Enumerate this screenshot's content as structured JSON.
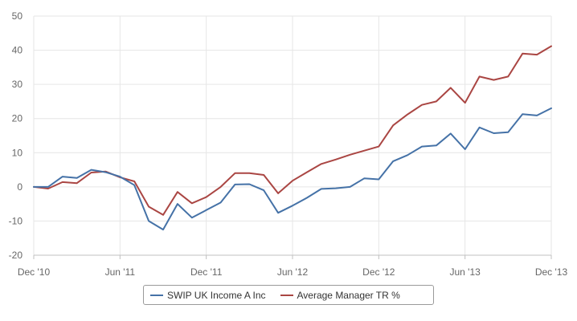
{
  "chart_data": {
    "type": "line",
    "title": "",
    "xlabel": "",
    "ylabel": "",
    "ylim": [
      -20,
      50
    ],
    "y_ticks": [
      "50",
      "40",
      "30",
      "20",
      "10",
      "0",
      "-10",
      "-20"
    ],
    "x_ticks": [
      "Dec '10",
      "Jun '11",
      "Dec '11",
      "Jun '12",
      "Dec '12",
      "Jun '13",
      "Dec '13"
    ],
    "x": [
      "Dec '10",
      "Jan '11",
      "Feb '11",
      "Mar '11",
      "Apr '11",
      "May '11",
      "Jun '11",
      "Jul '11",
      "Aug '11",
      "Sep '11",
      "Oct '11",
      "Nov '11",
      "Dec '11",
      "Jan '12",
      "Feb '12",
      "Mar '12",
      "Apr '12",
      "May '12",
      "Jun '12",
      "Jul '12",
      "Aug '12",
      "Sep '12",
      "Oct '12",
      "Nov '12",
      "Dec '12",
      "Jan '13",
      "Feb '13",
      "Mar '13",
      "Apr '13",
      "May '13",
      "Jun '13",
      "Jul '13",
      "Aug '13",
      "Sep '13",
      "Oct '13",
      "Nov '13",
      "Dec '13"
    ],
    "grid": true,
    "legend_position": "bottom-center",
    "series": [
      {
        "name": "SWIP UK Income A Inc",
        "color": "#4572a7",
        "values": [
          0,
          0,
          3,
          2.6,
          5,
          4.3,
          3,
          0.5,
          -10,
          -12.5,
          -5,
          -9,
          -6.8,
          -4.6,
          0.7,
          0.8,
          -1,
          -7.6,
          -5.5,
          -3.2,
          -0.6,
          -0.4,
          0,
          2.5,
          2.2,
          7.5,
          9.3,
          11.8,
          12.1,
          15.6,
          11,
          17.4,
          15.7,
          16,
          21.3,
          20.9,
          23
        ]
      },
      {
        "name": "Average Manager TR %",
        "color": "#aa4643",
        "values": [
          0,
          -0.5,
          1.4,
          1.1,
          4.2,
          4.5,
          2.8,
          1.6,
          -5.8,
          -8.2,
          -1.5,
          -4.8,
          -3,
          0,
          4,
          4,
          3.5,
          -1.9,
          1.8,
          4.3,
          6.7,
          8,
          9.4,
          10.6,
          11.8,
          18,
          21.2,
          24,
          25,
          29,
          24.6,
          32.3,
          31.3,
          32.3,
          39,
          38.7,
          41.2
        ]
      }
    ]
  }
}
